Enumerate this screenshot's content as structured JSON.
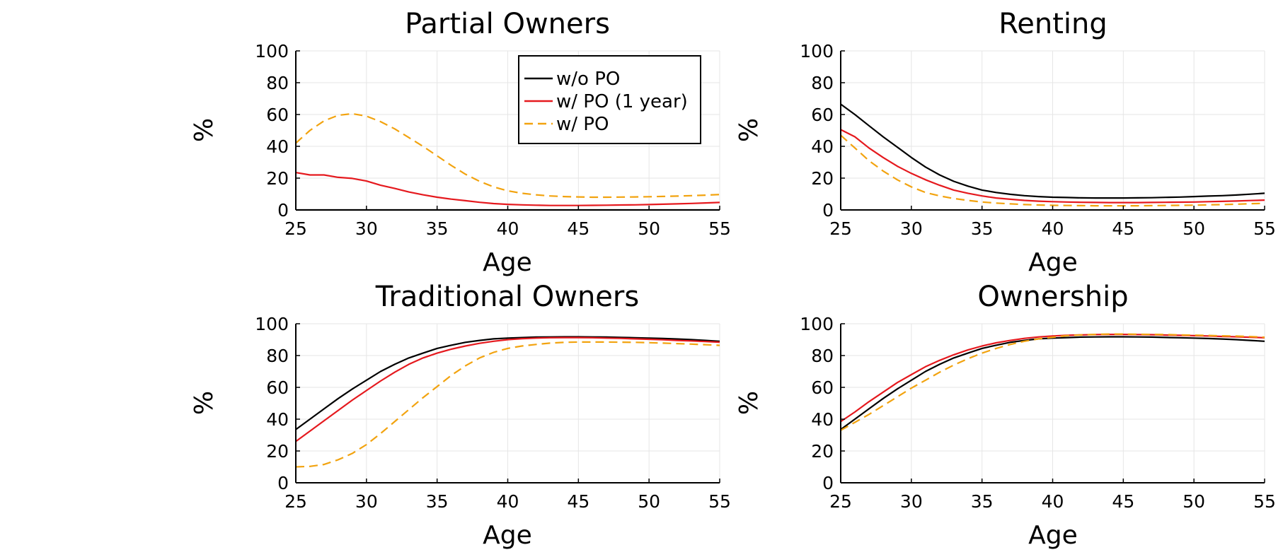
{
  "chart_data": [
    {
      "type": "line",
      "title": "Partial Owners",
      "xlabel": "Age",
      "ylabel": "%",
      "xlim": [
        25,
        55
      ],
      "ylim": [
        0,
        100
      ],
      "xticks": [
        "25",
        "30",
        "35",
        "40",
        "45",
        "50",
        "55"
      ],
      "yticks": [
        "0",
        "20",
        "40",
        "60",
        "80",
        "100"
      ],
      "grid": true,
      "legend": "top-right",
      "x": [
        25,
        26,
        27,
        28,
        29,
        30,
        31,
        32,
        33,
        34,
        35,
        36,
        37,
        38,
        39,
        40,
        41,
        42,
        43,
        44,
        45,
        46,
        47,
        48,
        49,
        50,
        51,
        52,
        53,
        54,
        55
      ],
      "series": [
        {
          "name": "w/o PO",
          "values": [
            0,
            0,
            0,
            0,
            0,
            0,
            0,
            0,
            0,
            0,
            0,
            0,
            0,
            0,
            0,
            0,
            0,
            0,
            0,
            0,
            0,
            0,
            0,
            0,
            0,
            0,
            0,
            0,
            0,
            0,
            0
          ]
        },
        {
          "name": "w/ PO (1 year)",
          "values": [
            23.5,
            22,
            22,
            20.5,
            19.8,
            18.2,
            15.5,
            13.5,
            11.3,
            9.5,
            8,
            6.8,
            5.8,
            4.8,
            4,
            3.5,
            3.2,
            3,
            2.8,
            2.8,
            2.8,
            2.9,
            3,
            3.1,
            3.2,
            3.4,
            3.6,
            3.8,
            4.1,
            4.4,
            4.7
          ]
        },
        {
          "name": "w/ PO",
          "values": [
            42,
            50,
            56,
            59.5,
            60.5,
            59,
            55.5,
            51,
            45.5,
            40,
            34,
            28,
            22.5,
            18,
            14.5,
            12,
            10.5,
            9.5,
            8.8,
            8.4,
            8.2,
            8,
            8,
            8.1,
            8.2,
            8.3,
            8.5,
            8.7,
            9,
            9.3,
            9.7
          ]
        }
      ]
    },
    {
      "type": "line",
      "title": "Renting",
      "xlabel": "Age",
      "ylabel": "%",
      "xlim": [
        25,
        55
      ],
      "ylim": [
        0,
        100
      ],
      "xticks": [
        "25",
        "30",
        "35",
        "40",
        "45",
        "50",
        "55"
      ],
      "yticks": [
        "0",
        "20",
        "40",
        "60",
        "80",
        "100"
      ],
      "grid": true,
      "x": [
        25,
        26,
        27,
        28,
        29,
        30,
        31,
        32,
        33,
        34,
        35,
        36,
        37,
        38,
        39,
        40,
        41,
        42,
        43,
        44,
        45,
        46,
        47,
        48,
        49,
        50,
        51,
        52,
        53,
        54,
        55
      ],
      "series": [
        {
          "name": "w/o PO",
          "values": [
            66.5,
            60,
            53,
            46,
            39.5,
            33,
            27,
            22,
            18,
            15,
            12.5,
            11,
            9.8,
            9,
            8.4,
            8,
            7.8,
            7.6,
            7.5,
            7.5,
            7.5,
            7.6,
            7.7,
            7.9,
            8.1,
            8.4,
            8.7,
            9,
            9.4,
            9.9,
            10.5
          ]
        },
        {
          "name": "w/ PO (1 year)",
          "values": [
            50.5,
            46,
            39,
            33,
            27.5,
            23,
            19,
            15.5,
            12.5,
            10.5,
            8.8,
            7.5,
            6.7,
            6,
            5.5,
            5.2,
            5,
            4.8,
            4.7,
            4.6,
            4.6,
            4.6,
            4.7,
            4.8,
            4.9,
            5,
            5.2,
            5.4,
            5.6,
            5.9,
            6.2
          ]
        },
        {
          "name": "w/ PO",
          "values": [
            47,
            39,
            31,
            24.5,
            19,
            14.5,
            11,
            8.8,
            7.2,
            6,
            5,
            4.3,
            3.8,
            3.4,
            3.1,
            2.9,
            2.8,
            2.7,
            2.6,
            2.6,
            2.6,
            2.6,
            2.7,
            2.8,
            2.9,
            3,
            3.2,
            3.4,
            3.6,
            3.9,
            4.2
          ]
        }
      ]
    },
    {
      "type": "line",
      "title": "Traditional Owners",
      "xlabel": "Age",
      "ylabel": "%",
      "xlim": [
        25,
        55
      ],
      "ylim": [
        0,
        100
      ],
      "xticks": [
        "25",
        "30",
        "35",
        "40",
        "45",
        "50",
        "55"
      ],
      "yticks": [
        "0",
        "20",
        "40",
        "60",
        "80",
        "100"
      ],
      "grid": true,
      "x": [
        25,
        26,
        27,
        28,
        29,
        30,
        31,
        32,
        33,
        34,
        35,
        36,
        37,
        38,
        39,
        40,
        41,
        42,
        43,
        44,
        45,
        46,
        47,
        48,
        49,
        50,
        51,
        52,
        53,
        54,
        55
      ],
      "series": [
        {
          "name": "w/o PO",
          "values": [
            33.5,
            40,
            46.5,
            53,
            59,
            64.5,
            70,
            74.5,
            78.5,
            81.5,
            84.5,
            86.5,
            88.3,
            89.5,
            90.5,
            91,
            91.3,
            91.6,
            91.7,
            91.8,
            91.8,
            91.7,
            91.6,
            91.4,
            91.2,
            91,
            90.7,
            90.4,
            90,
            89.5,
            89
          ]
        },
        {
          "name": "w/ PO (1 year)",
          "values": [
            26,
            32.5,
            39,
            45.5,
            52,
            58,
            64,
            69.5,
            74.5,
            78.5,
            81.5,
            84,
            86,
            87.7,
            89,
            90,
            90.6,
            91,
            91.2,
            91.3,
            91.3,
            91.2,
            91,
            90.8,
            90.5,
            90.2,
            89.9,
            89.5,
            89.2,
            88.8,
            88.4
          ]
        },
        {
          "name": "w/ PO",
          "values": [
            10,
            10.3,
            11.5,
            14.5,
            18.5,
            24,
            31,
            38.5,
            46,
            53.5,
            60.5,
            67.5,
            73.5,
            78.5,
            82,
            84.5,
            86,
            87,
            87.8,
            88.3,
            88.5,
            88.5,
            88.5,
            88.4,
            88.3,
            88.1,
            87.8,
            87.5,
            87.2,
            86.8,
            86.4
          ]
        }
      ]
    },
    {
      "type": "line",
      "title": "Ownership",
      "xlabel": "Age",
      "ylabel": "%",
      "xlim": [
        25,
        55
      ],
      "ylim": [
        0,
        100
      ],
      "xticks": [
        "25",
        "30",
        "35",
        "40",
        "45",
        "50",
        "55"
      ],
      "yticks": [
        "0",
        "20",
        "40",
        "60",
        "80",
        "100"
      ],
      "grid": true,
      "x": [
        25,
        26,
        27,
        28,
        29,
        30,
        31,
        32,
        33,
        34,
        35,
        36,
        37,
        38,
        39,
        40,
        41,
        42,
        43,
        44,
        45,
        46,
        47,
        48,
        49,
        50,
        51,
        52,
        53,
        54,
        55
      ],
      "series": [
        {
          "name": "w/o PO",
          "values": [
            33.5,
            40,
            46.5,
            53,
            59,
            64.5,
            70,
            74.5,
            78.5,
            81.5,
            84.5,
            86.5,
            88.3,
            89.5,
            90.5,
            91,
            91.3,
            91.6,
            91.7,
            91.8,
            91.8,
            91.7,
            91.6,
            91.4,
            91.2,
            91,
            90.7,
            90.4,
            90,
            89.5,
            89
          ]
        },
        {
          "name": "w/ PO (1 year)",
          "values": [
            38.5,
            44.5,
            51,
            57,
            63,
            68,
            73,
            77,
            80.5,
            83.5,
            86,
            88,
            89.5,
            90.8,
            91.7,
            92.3,
            92.7,
            93,
            93.2,
            93.3,
            93.3,
            93.2,
            93.1,
            92.9,
            92.7,
            92.5,
            92.3,
            92,
            91.8,
            91.5,
            91.2
          ]
        },
        {
          "name": "w/ PO",
          "values": [
            33,
            38,
            43,
            48.5,
            54,
            59.5,
            64.5,
            69.5,
            74,
            78,
            81.5,
            84.5,
            87,
            89,
            90.5,
            91.5,
            92.5,
            93,
            93.3,
            93.5,
            93.5,
            93.4,
            93.3,
            93.2,
            93,
            92.8,
            92.6,
            92.4,
            92.2,
            91.9,
            91.5
          ]
        }
      ]
    }
  ],
  "legend": {
    "entries": [
      "w/o PO",
      "w/ PO (1 year)",
      "w/ PO"
    ]
  },
  "colors": {
    "w/o PO": "#000000",
    "w/ PO (1 year)": "#e5191e",
    "w/ PO": "#f2a30f"
  }
}
